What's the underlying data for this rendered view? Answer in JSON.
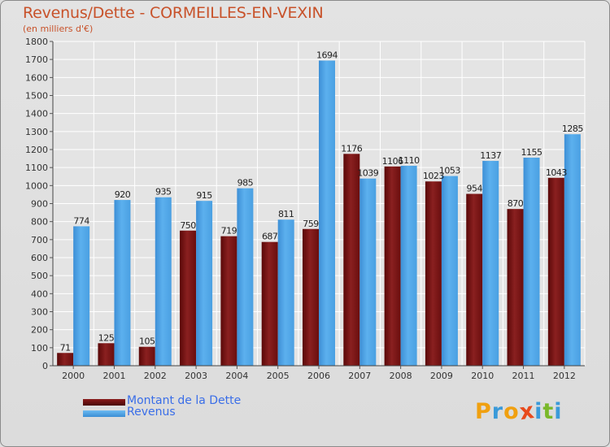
{
  "title": "Revenus/Dette - CORMEILLES-EN-VEXIN",
  "subtitle": "(en milliers d'€)",
  "colors": {
    "dette": "#7a1414",
    "revenus": "#4a9ee0",
    "title": "#c8522a",
    "legend_text": "#3a6ee8"
  },
  "legend": [
    {
      "label": "Montant de la Dette",
      "color": "#6b0c0c"
    },
    {
      "label": "Revenus",
      "color": "#4aa3e6"
    }
  ],
  "logo": {
    "text": "Proxiti",
    "letters": [
      {
        "ch": "P",
        "color": "#f0a010"
      },
      {
        "ch": "r",
        "color": "#3a9ad9"
      },
      {
        "ch": "o",
        "color": "#f0a010"
      },
      {
        "ch": "x",
        "color": "#e84a1c"
      },
      {
        "ch": "i",
        "color": "#3a9ad9"
      },
      {
        "ch": "t",
        "color": "#7ab82a"
      },
      {
        "ch": "i",
        "color": "#3a9ad9"
      }
    ]
  },
  "chart_data": {
    "type": "bar",
    "title": "Revenus/Dette - CORMEILLES-EN-VEXIN",
    "subtitle": "(en milliers d'€)",
    "xlabel": "",
    "ylabel": "",
    "categories": [
      "2000",
      "2001",
      "2002",
      "2003",
      "2004",
      "2005",
      "2006",
      "2007",
      "2008",
      "2009",
      "2010",
      "2011",
      "2012"
    ],
    "series": [
      {
        "name": "Montant de la Dette",
        "values": [
          71,
          125,
          105,
          750,
          719,
          687,
          759,
          1176,
          1106,
          1023,
          954,
          870,
          1043
        ]
      },
      {
        "name": "Revenus",
        "values": [
          774,
          920,
          935,
          915,
          985,
          811,
          1694,
          1039,
          1110,
          1053,
          1137,
          1155,
          1285
        ]
      }
    ],
    "ylim": [
      0,
      1800
    ],
    "yticks": [
      0,
      100,
      200,
      300,
      400,
      500,
      600,
      700,
      800,
      900,
      1000,
      1100,
      1200,
      1300,
      1400,
      1500,
      1600,
      1700,
      1800
    ],
    "grid": true,
    "legend_position": "bottom-left"
  }
}
